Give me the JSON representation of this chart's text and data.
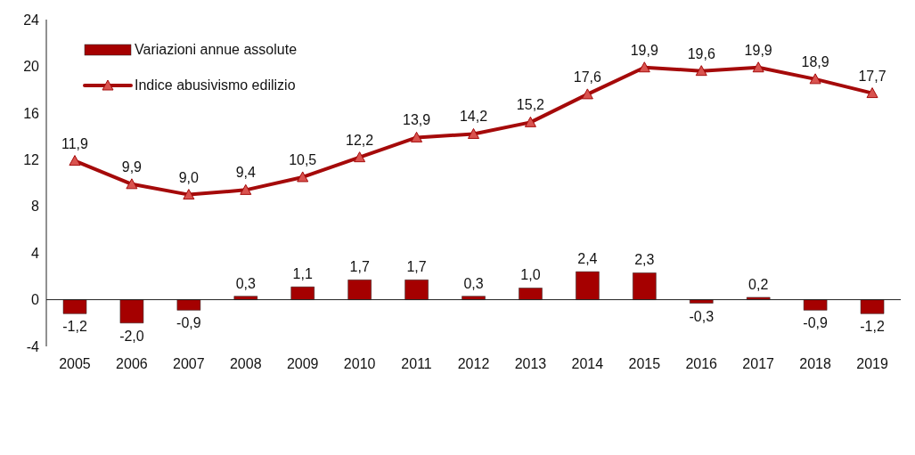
{
  "chart_data": {
    "type": "bar",
    "categories": [
      "2005",
      "2006",
      "2007",
      "2008",
      "2009",
      "2010",
      "2011",
      "2012",
      "2013",
      "2014",
      "2015",
      "2016",
      "2017",
      "2018",
      "2019"
    ],
    "series": [
      {
        "name": "Variazioni annue assolute",
        "color": "#a50000",
        "values": [
          -1.2,
          -2.0,
          -0.9,
          0.3,
          1.1,
          1.7,
          1.7,
          0.3,
          1.0,
          2.4,
          2.3,
          -0.3,
          0.2,
          -0.9,
          -1.2
        ],
        "value_labels": [
          "-1,2",
          "-2,0",
          "-0,9",
          "0,3",
          "1,1",
          "1,7",
          "1,7",
          "0,3",
          "1,0",
          "2,4",
          "2,3",
          "-0,3",
          "0,2",
          "-0,9",
          "-1,2"
        ]
      },
      {
        "name": "Indice abusivismo edilizio",
        "type": "line",
        "color": "#a50a0a",
        "values": [
          11.9,
          9.9,
          9.0,
          9.4,
          10.5,
          12.2,
          13.9,
          14.2,
          15.2,
          17.6,
          19.9,
          19.6,
          19.9,
          18.9,
          17.7
        ],
        "value_labels": [
          "11,9",
          "9,9",
          "9,0",
          "9,4",
          "10,5",
          "12,2",
          "13,9",
          "14,2",
          "15,2",
          "17,6",
          "19,9",
          "19,6",
          "19,9",
          "18,9",
          "17,7"
        ],
        "marker": "triangle"
      }
    ],
    "ylim": [
      -4,
      24
    ],
    "yticks": [
      -4,
      0,
      4,
      8,
      12,
      16,
      20,
      24
    ],
    "legend": "top left"
  }
}
